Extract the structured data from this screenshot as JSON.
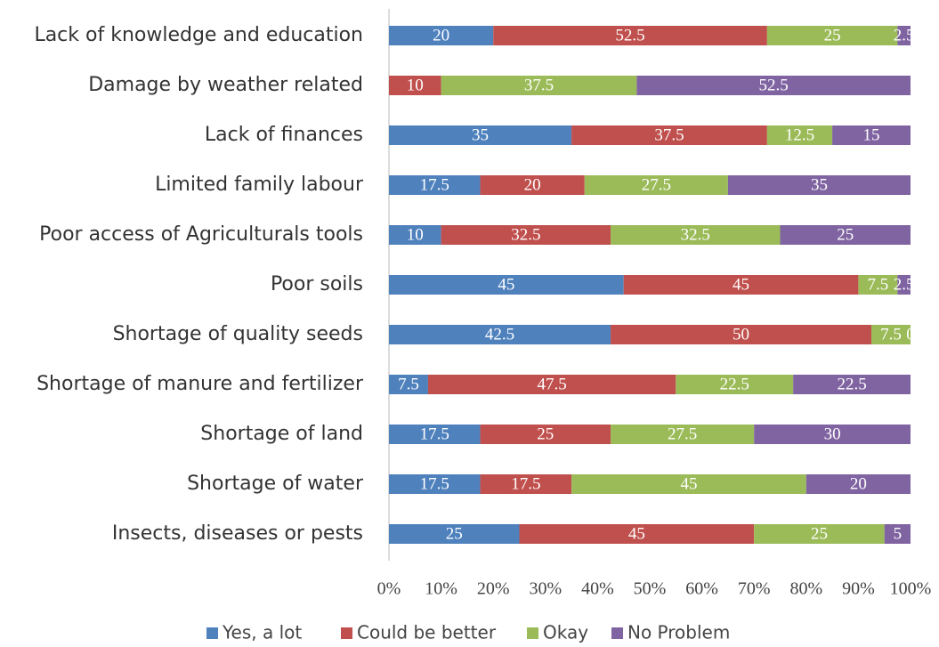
{
  "chart_data": {
    "type": "stacked-bar-horizontal",
    "categories": [
      "Lack of knowledge and education",
      "Damage by weather related",
      "Lack of finances",
      "Limited family labour",
      "Poor access of Agriculturals tools",
      "Poor soils",
      "Shortage of quality seeds",
      "Shortage of manure and fertilizer",
      "Shortage of land",
      "Shortage of water",
      "Insects, diseases or pests"
    ],
    "series": [
      {
        "name": "Yes, a lot",
        "color": "#4f81bd",
        "values": [
          20,
          0,
          35,
          17.5,
          10,
          45,
          42.5,
          7.5,
          17.5,
          17.5,
          25
        ]
      },
      {
        "name": "Could be better",
        "color": "#c0504d",
        "values": [
          52.5,
          10,
          37.5,
          20,
          32.5,
          45,
          50,
          47.5,
          25,
          17.5,
          45
        ]
      },
      {
        "name": "Okay",
        "color": "#9bbb59",
        "values": [
          25,
          37.5,
          12.5,
          27.5,
          32.5,
          7.5,
          7.5,
          22.5,
          27.5,
          45,
          25
        ]
      },
      {
        "name": "No Problem",
        "color": "#8064a2",
        "values": [
          2.5,
          52.5,
          15,
          35,
          25,
          2.5,
          0,
          22.5,
          30,
          20,
          5
        ]
      }
    ],
    "xlim": [
      0,
      100
    ],
    "xticks": [
      {
        "value": 0,
        "label": "0%"
      },
      {
        "value": 10,
        "label": "10%"
      },
      {
        "value": 20,
        "label": "20%"
      },
      {
        "value": 30,
        "label": "30%"
      },
      {
        "value": 40,
        "label": "40%"
      },
      {
        "value": 50,
        "label": "50%"
      },
      {
        "value": 60,
        "label": "60%"
      },
      {
        "value": 70,
        "label": "70%"
      },
      {
        "value": 80,
        "label": "80%"
      },
      {
        "value": 90,
        "label": "90%"
      },
      {
        "value": 100,
        "label": "100%"
      }
    ],
    "legend": "bottom"
  }
}
